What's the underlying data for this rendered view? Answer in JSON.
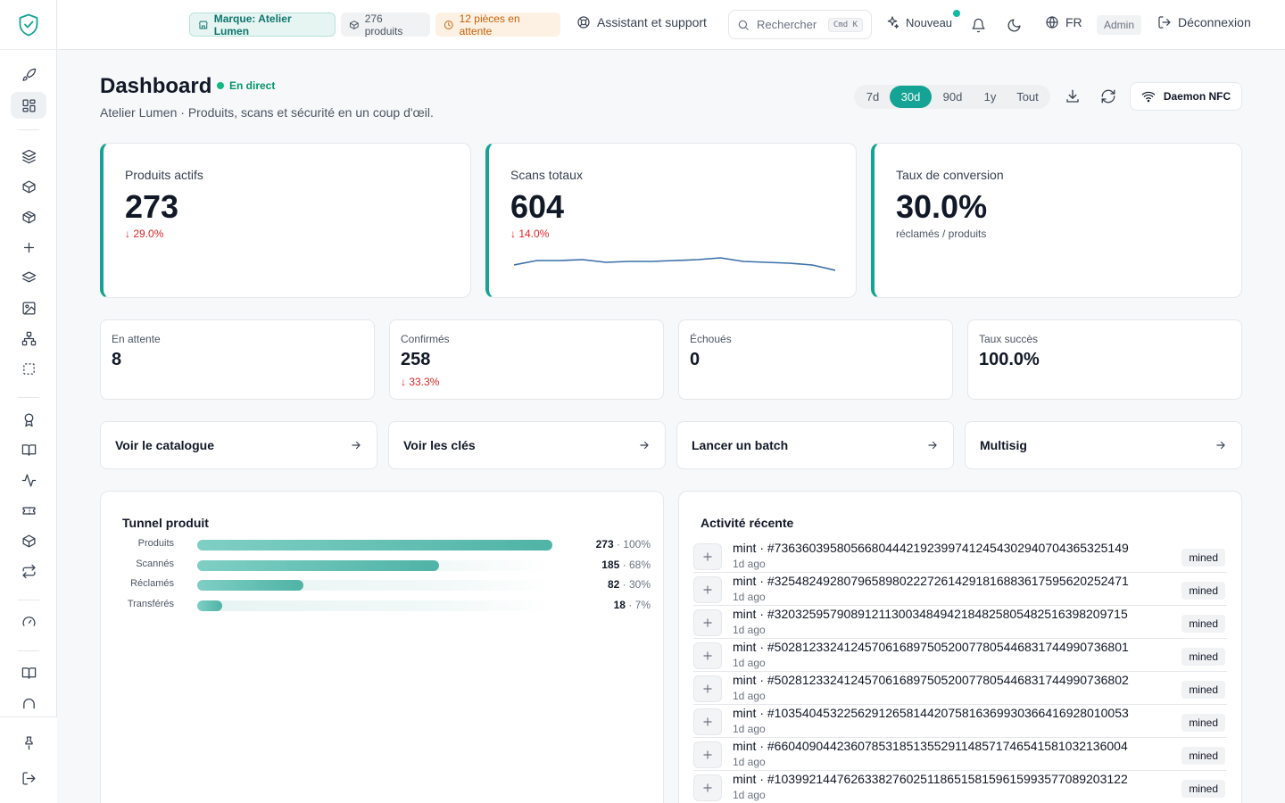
{
  "topbar": {
    "brand_chip": "Marque: Atelier Lumen",
    "products_chip": "276 produits",
    "pending_chip": "12 pièces en attente",
    "support": "Assistant et support",
    "search_placeholder": "Rechercher",
    "search_kbd": "Cmd K",
    "new_label": "Nouveau",
    "language": "FR",
    "role": "Admin",
    "logout": "Déconnexion"
  },
  "header": {
    "title": "Dashboard",
    "live": "En direct",
    "subtitle": "Atelier Lumen · Produits, scans et sécurité en un coup d'œil.",
    "ranges": [
      "7d",
      "30d",
      "90d",
      "1y",
      "Tout"
    ],
    "active_range": "30d",
    "nfc_button": "Daemon NFC"
  },
  "kpis": [
    {
      "label": "Produits actifs",
      "value": "273",
      "delta": "↓ 29.0%"
    },
    {
      "label": "Scans totaux",
      "value": "604",
      "delta": "↓ 14.0%",
      "sparkline": [
        0.3,
        0.55,
        0.55,
        0.6,
        0.45,
        0.5,
        0.5,
        0.55,
        0.6,
        0.7,
        0.5,
        0.45,
        0.4,
        0.3,
        0.0
      ]
    },
    {
      "label": "Taux de conversion",
      "value": "30.0%",
      "note": "réclamés / produits"
    }
  ],
  "stats": [
    {
      "label": "En attente",
      "value": "8",
      "delta": ""
    },
    {
      "label": "Confirmés",
      "value": "258",
      "delta": "↓ 33.3%"
    },
    {
      "label": "Échoués",
      "value": "0",
      "delta": ""
    },
    {
      "label": "Taux succès",
      "value": "100.0%",
      "delta": ""
    }
  ],
  "actions": [
    "Voir le catalogue",
    "Voir les clés",
    "Lancer un batch",
    "Multisig"
  ],
  "funnel": {
    "title": "Tunnel produit",
    "rows": [
      {
        "label": "Produits",
        "count": "273",
        "pct": "100%",
        "fraction": 1.0
      },
      {
        "label": "Scannés",
        "count": "185",
        "pct": "68%",
        "fraction": 0.68
      },
      {
        "label": "Réclamés",
        "count": "82",
        "pct": "30%",
        "fraction": 0.3
      },
      {
        "label": "Transférés",
        "count": "18",
        "pct": "7%",
        "fraction": 0.07
      }
    ]
  },
  "activity": {
    "title": "Activité récente",
    "items": [
      {
        "title": "mint · #736360395805668044421923997412454302940704365325149",
        "time": "1d ago",
        "status": "mined"
      },
      {
        "title": "mint · #325482492807965898022272614291816883617595620252471",
        "time": "1d ago",
        "status": "mined"
      },
      {
        "title": "mint · #320325957908912113003484942184825805482516398209715",
        "time": "1d ago",
        "status": "mined"
      },
      {
        "title": "mint · #502812332412457061689750520077805446831744990736801",
        "time": "1d ago",
        "status": "mined"
      },
      {
        "title": "mint · #502812332412457061689750520077805446831744990736802",
        "time": "1d ago",
        "status": "mined"
      },
      {
        "title": "mint · #103540453225629126581442075816369930366416928010053",
        "time": "1d ago",
        "status": "mined"
      },
      {
        "title": "mint · #660409044236078531851355291148571746541581032136004",
        "time": "1d ago",
        "status": "mined"
      },
      {
        "title": "mint · #103992144762633827602511865158159615993577089203122",
        "time": "1d ago",
        "status": "mined"
      }
    ]
  },
  "colors": {
    "accent": "#14a394",
    "danger": "#dc2626",
    "live": "#10b981"
  }
}
